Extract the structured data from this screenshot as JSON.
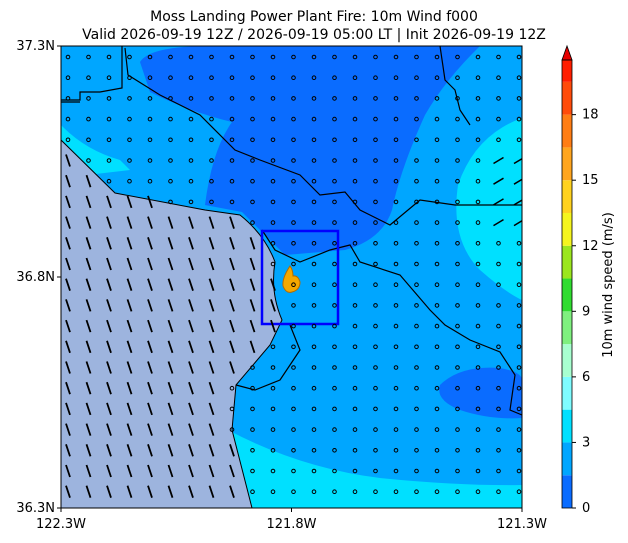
{
  "map": {
    "title": "Moss Landing Power Plant Fire: 10m Wind f000",
    "subtitle": "Valid 2026-09-19 12Z / 2026-09-19 05:00 LT | Init 2026-09-19 12Z",
    "lon_range": [
      -122.3,
      -121.3
    ],
    "lat_range": [
      36.3,
      37.3
    ],
    "lon_ticks": [
      {
        "value": -122.3,
        "label": "122.3W"
      },
      {
        "value": -121.8,
        "label": "121.8W"
      },
      {
        "value": -121.3,
        "label": "121.3W"
      }
    ],
    "lat_ticks": [
      {
        "value": 36.3,
        "label": "36.3N"
      },
      {
        "value": 36.8,
        "label": "36.8N"
      },
      {
        "value": 37.3,
        "label": "37.3N"
      }
    ],
    "colorbar": {
      "label": "10m wind speed (m/s)",
      "range": [
        0,
        20.5
      ],
      "ticks": [
        0,
        3,
        6,
        9,
        12,
        15,
        18
      ],
      "bounds": [
        0,
        1.5,
        3,
        4.5,
        6,
        7.5,
        9,
        10.5,
        12,
        13.5,
        15,
        16.5,
        18,
        19.5
      ],
      "colors": [
        "#0a6cff",
        "#00a6ff",
        "#00e0ff",
        "#7ffcff",
        "#a8ffd0",
        "#7ff07f",
        "#30dc30",
        "#9be61e",
        "#f5f51e",
        "#ffd21e",
        "#ffa51e",
        "#ff7d14",
        "#ff4b0a",
        "#ff1e00"
      ],
      "extend_color": "#e60000"
    }
  }
}
